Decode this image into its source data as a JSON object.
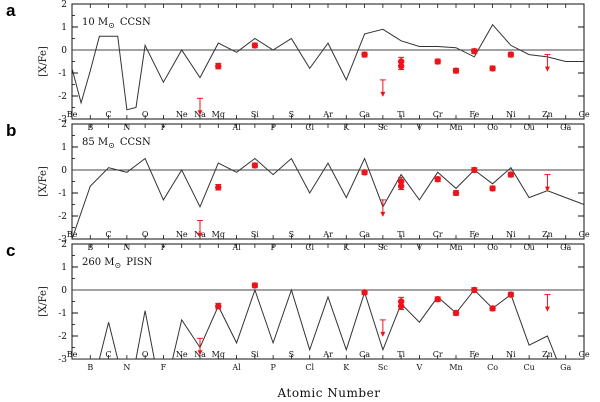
{
  "chart_data": {
    "type": "line",
    "xlabel": "Atomic Number",
    "ylabel": "[X/Fe]",
    "ylim": [
      -3,
      2
    ],
    "yticks": [
      -3,
      -2,
      -1,
      0,
      1,
      2
    ],
    "xlim": [
      4,
      32
    ],
    "reference_line": 0,
    "elements_top_row": [
      {
        "z": 4,
        "symbol": "Be"
      },
      {
        "z": 6,
        "symbol": "C"
      },
      {
        "z": 8,
        "symbol": "O"
      },
      {
        "z": 10,
        "symbol": "Ne"
      },
      {
        "z": 11,
        "symbol": "Na"
      },
      {
        "z": 12,
        "symbol": "Mg"
      },
      {
        "z": 14,
        "symbol": "Si"
      },
      {
        "z": 16,
        "symbol": "S"
      },
      {
        "z": 18,
        "symbol": "Ar"
      },
      {
        "z": 20,
        "symbol": "Ca"
      },
      {
        "z": 22,
        "symbol": "Ti"
      },
      {
        "z": 24,
        "symbol": "Cr"
      },
      {
        "z": 26,
        "symbol": "Fe"
      },
      {
        "z": 28,
        "symbol": "Ni"
      },
      {
        "z": 30,
        "symbol": "Zn"
      },
      {
        "z": 32,
        "symbol": "Ge"
      }
    ],
    "elements_bottom_row": [
      {
        "z": 5,
        "symbol": "B"
      },
      {
        "z": 7,
        "symbol": "N"
      },
      {
        "z": 9,
        "symbol": "F"
      },
      {
        "z": 13,
        "symbol": "Al"
      },
      {
        "z": 15,
        "symbol": "P"
      },
      {
        "z": 17,
        "symbol": "Cl"
      },
      {
        "z": 19,
        "symbol": "K"
      },
      {
        "z": 21,
        "symbol": "Sc"
      },
      {
        "z": 23,
        "symbol": "V"
      },
      {
        "z": 25,
        "symbol": "Mn"
      },
      {
        "z": 27,
        "symbol": "Co"
      },
      {
        "z": 29,
        "symbol": "Cu"
      },
      {
        "z": 31,
        "symbol": "Ga"
      }
    ],
    "panels": [
      {
        "letter": "a",
        "label": "10 M",
        "label_suffix": "CCSN",
        "model_line": [
          [
            4,
            -0.8
          ],
          [
            4.5,
            -2.3
          ],
          [
            5,
            -0.9
          ],
          [
            5.5,
            0.6
          ],
          [
            6.5,
            0.6
          ],
          [
            7,
            -2.6
          ],
          [
            7.5,
            -2.5
          ],
          [
            8,
            0.2
          ],
          [
            9,
            -1.4
          ],
          [
            10,
            0.0
          ],
          [
            11,
            -1.2
          ],
          [
            12,
            0.3
          ],
          [
            13,
            -0.1
          ],
          [
            14,
            0.5
          ],
          [
            15,
            0.0
          ],
          [
            16,
            0.5
          ],
          [
            17,
            -0.8
          ],
          [
            18,
            0.3
          ],
          [
            19,
            -1.3
          ],
          [
            20,
            0.7
          ],
          [
            21,
            0.9
          ],
          [
            22,
            0.4
          ],
          [
            23,
            0.15
          ],
          [
            24,
            0.15
          ],
          [
            25,
            0.1
          ],
          [
            26,
            -0.3
          ],
          [
            27,
            1.1
          ],
          [
            28,
            0.2
          ],
          [
            29,
            -0.2
          ],
          [
            30,
            -0.3
          ],
          [
            31,
            -0.5
          ],
          [
            32,
            -0.5
          ]
        ],
        "observations": [
          {
            "z": 12,
            "y": -0.7,
            "err": 0.12
          },
          {
            "z": 14,
            "y": 0.2,
            "err": 0.1
          },
          {
            "z": 20,
            "y": -0.2,
            "err": 0.1
          },
          {
            "z": 22,
            "y": -0.5,
            "err": 0.18
          },
          {
            "z": 22,
            "y": -0.7,
            "err": 0.15
          },
          {
            "z": 24,
            "y": -0.5,
            "err": 0.1
          },
          {
            "z": 25,
            "y": -0.9,
            "err": 0.1
          },
          {
            "z": 26,
            "y": -0.05,
            "err": 0.1
          },
          {
            "z": 27,
            "y": -0.8,
            "err": 0.1
          },
          {
            "z": 28,
            "y": -0.2,
            "err": 0.1
          }
        ],
        "upper_limits": [
          {
            "z": 11,
            "y": -2.1
          },
          {
            "z": 21,
            "y": -1.3
          },
          {
            "z": 30,
            "y": -0.2
          }
        ]
      },
      {
        "letter": "b",
        "label": "85 M",
        "label_suffix": "CCSN",
        "model_line": [
          [
            4,
            -3.0
          ],
          [
            5,
            -0.7
          ],
          [
            6,
            0.1
          ],
          [
            7,
            -0.1
          ],
          [
            8,
            0.5
          ],
          [
            9,
            -1.3
          ],
          [
            10,
            0.0
          ],
          [
            11,
            -1.6
          ],
          [
            12,
            0.3
          ],
          [
            13,
            -0.1
          ],
          [
            14,
            0.5
          ],
          [
            15,
            -0.2
          ],
          [
            16,
            0.5
          ],
          [
            17,
            -1.0
          ],
          [
            18,
            0.3
          ],
          [
            19,
            -1.2
          ],
          [
            20,
            0.5
          ],
          [
            21,
            -1.6
          ],
          [
            22,
            -0.2
          ],
          [
            23,
            -1.3
          ],
          [
            24,
            -0.1
          ],
          [
            25,
            -0.8
          ],
          [
            26,
            0.0
          ],
          [
            27,
            -0.6
          ],
          [
            28,
            0.1
          ],
          [
            29,
            -1.2
          ],
          [
            30,
            -0.9
          ],
          [
            31,
            -1.2
          ],
          [
            32,
            -1.5
          ]
        ],
        "observations": [
          {
            "z": 12,
            "y": -0.75,
            "err": 0.12
          },
          {
            "z": 14,
            "y": 0.2,
            "err": 0.1
          },
          {
            "z": 20,
            "y": -0.1,
            "err": 0.1
          },
          {
            "z": 22,
            "y": -0.5,
            "err": 0.18
          },
          {
            "z": 22,
            "y": -0.7,
            "err": 0.15
          },
          {
            "z": 24,
            "y": -0.4,
            "err": 0.1
          },
          {
            "z": 25,
            "y": -1.0,
            "err": 0.1
          },
          {
            "z": 26,
            "y": 0.0,
            "err": 0.1
          },
          {
            "z": 27,
            "y": -0.8,
            "err": 0.1
          },
          {
            "z": 28,
            "y": -0.2,
            "err": 0.1
          }
        ],
        "upper_limits": [
          {
            "z": 11,
            "y": -2.2
          },
          {
            "z": 21,
            "y": -1.3
          },
          {
            "z": 30,
            "y": -0.2
          }
        ]
      },
      {
        "letter": "c",
        "label": "260 M",
        "label_suffix": "PISN",
        "model_line": [
          [
            4,
            -3.0
          ],
          [
            5.5,
            -3.0
          ],
          [
            6,
            -1.4
          ],
          [
            6.5,
            -3.0
          ],
          [
            7.5,
            -3.0
          ],
          [
            8,
            -0.9
          ],
          [
            8.5,
            -3.0
          ],
          [
            9.5,
            -3.0
          ],
          [
            10,
            -1.3
          ],
          [
            11,
            -2.5
          ],
          [
            12,
            -0.7
          ],
          [
            13,
            -2.3
          ],
          [
            14,
            0.0
          ],
          [
            15,
            -2.3
          ],
          [
            16,
            0.0
          ],
          [
            17,
            -2.6
          ],
          [
            18,
            -0.3
          ],
          [
            19,
            -2.6
          ],
          [
            20,
            -0.1
          ],
          [
            21,
            -2.6
          ],
          [
            22,
            -0.6
          ],
          [
            23,
            -1.4
          ],
          [
            24,
            -0.3
          ],
          [
            25,
            -1.0
          ],
          [
            26,
            0.0
          ],
          [
            27,
            -0.8
          ],
          [
            28,
            -0.2
          ],
          [
            29,
            -2.4
          ],
          [
            30,
            -2.0
          ],
          [
            30.5,
            -3.0
          ],
          [
            32,
            -3.0
          ]
        ],
        "observations": [
          {
            "z": 12,
            "y": -0.7,
            "err": 0.12
          },
          {
            "z": 14,
            "y": 0.2,
            "err": 0.1
          },
          {
            "z": 20,
            "y": -0.1,
            "err": 0.1
          },
          {
            "z": 22,
            "y": -0.5,
            "err": 0.18
          },
          {
            "z": 22,
            "y": -0.7,
            "err": 0.15
          },
          {
            "z": 24,
            "y": -0.4,
            "err": 0.1
          },
          {
            "z": 25,
            "y": -1.0,
            "err": 0.1
          },
          {
            "z": 26,
            "y": 0.0,
            "err": 0.1
          },
          {
            "z": 27,
            "y": -0.8,
            "err": 0.1
          },
          {
            "z": 28,
            "y": -0.2,
            "err": 0.1
          }
        ],
        "upper_limits": [
          {
            "z": 11,
            "y": -2.1
          },
          {
            "z": 21,
            "y": -1.3
          },
          {
            "z": 30,
            "y": -0.2
          }
        ]
      }
    ]
  },
  "colors": {
    "model_line": "#333333",
    "observation": "#e8161b",
    "axes": "#111111",
    "reference": "#444444"
  },
  "labels": {
    "msun_symbol": "⊙"
  }
}
